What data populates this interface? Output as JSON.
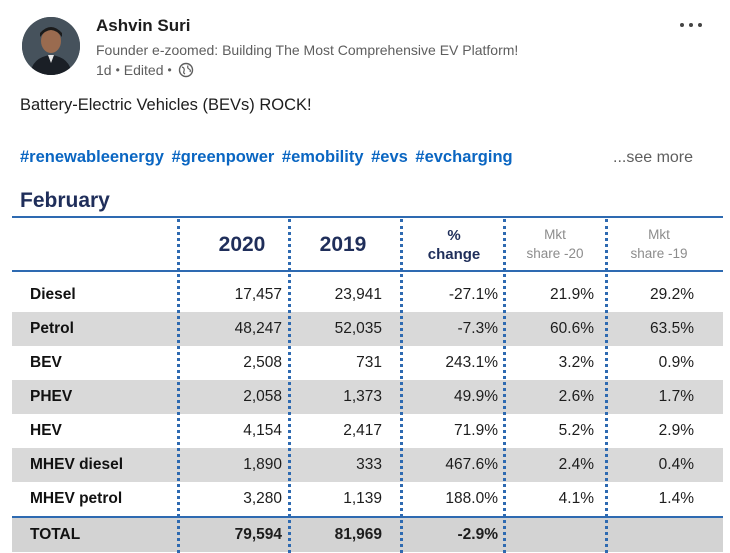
{
  "post": {
    "author": "Ashvin Suri",
    "headline": "Founder e-zoomed: Building The Most Comprehensive EV Platform!",
    "time": "1d",
    "edited": "Edited",
    "visibility_icon": "globe-icon",
    "more_icon": "ellipsis-icon",
    "text": "Battery-Electric Vehicles (BEVs) ROCK!",
    "hashtags": [
      "#renewableenergy",
      "#greenpower",
      "#emobility",
      "#evs",
      "#evcharging"
    ],
    "see_more": "...see more"
  },
  "table": {
    "title": "February",
    "headers": {
      "y2020": "2020",
      "y2019": "2019",
      "change_line1": "%",
      "change_line2": "change",
      "share20_line1": "Mkt",
      "share20_line2": "share -20",
      "share19_line1": "Mkt",
      "share19_line2": "share -19"
    },
    "rows": [
      {
        "label": "Diesel",
        "y2020": "17,457",
        "y2019": "23,941",
        "change": "-27.1%",
        "share20": "21.9%",
        "share19": "29.2%"
      },
      {
        "label": "Petrol",
        "y2020": "48,247",
        "y2019": "52,035",
        "change": "-7.3%",
        "share20": "60.6%",
        "share19": "63.5%"
      },
      {
        "label": "BEV",
        "y2020": "2,508",
        "y2019": "731",
        "change": "243.1%",
        "share20": "3.2%",
        "share19": "0.9%"
      },
      {
        "label": "PHEV",
        "y2020": "2,058",
        "y2019": "1,373",
        "change": "49.9%",
        "share20": "2.6%",
        "share19": "1.7%"
      },
      {
        "label": "HEV",
        "y2020": "4,154",
        "y2019": "2,417",
        "change": "71.9%",
        "share20": "5.2%",
        "share19": "2.9%"
      },
      {
        "label": "MHEV diesel",
        "y2020": "1,890",
        "y2019": "333",
        "change": "467.6%",
        "share20": "2.4%",
        "share19": "0.4%"
      },
      {
        "label": "MHEV petrol",
        "y2020": "3,280",
        "y2019": "1,139",
        "change": "188.0%",
        "share20": "4.1%",
        "share19": "1.4%"
      }
    ],
    "total": {
      "label": "TOTAL",
      "y2020": "79,594",
      "y2019": "81,969",
      "change": "-2.9%",
      "share20": "",
      "share19": ""
    }
  },
  "colors": {
    "link": "#0a66c2",
    "table_title": "#1f2e5a",
    "table_rule": "#2e6ab1",
    "row_shade": "#d9d9d9"
  }
}
